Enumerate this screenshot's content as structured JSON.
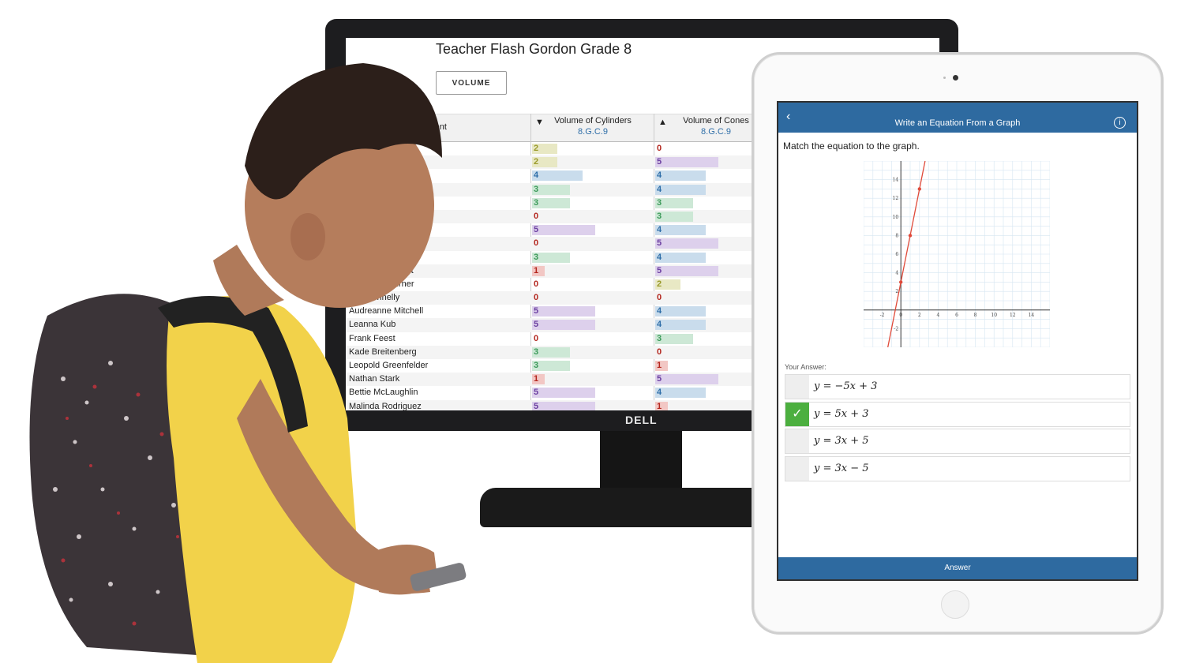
{
  "monitor": {
    "brand": "DELL",
    "title": "Teacher Flash Gordon Grade 8",
    "tab_button": "VOLUME",
    "student_header": "Student",
    "columns": [
      {
        "title": "Volume of Cylinders",
        "code": "8.G.C.9",
        "sort_arrow": "▼"
      },
      {
        "title": "Volume of Cones",
        "code": "8.G.C.9",
        "sort_arrow": "▲"
      }
    ],
    "rows": [
      {
        "name": "",
        "cyl": 2,
        "cone": 0
      },
      {
        "name": "",
        "cyl": 2,
        "cone": 5
      },
      {
        "name": "",
        "cyl": 4,
        "cone": 4
      },
      {
        "name": "",
        "cyl": 3,
        "cone": 4
      },
      {
        "name": "",
        "cyl": 3,
        "cone": 3
      },
      {
        "name": "",
        "cyl": 0,
        "cone": 3
      },
      {
        "name": "ros",
        "cyl": 5,
        "cone": 4
      },
      {
        "name": "ann",
        "cyl": 0,
        "cone": 5
      },
      {
        "name": "chuppe",
        "cyl": 3,
        "cone": 4
      },
      {
        "name": "Alysson Wuckert",
        "cyl": 1,
        "cone": 5
      },
      {
        "name": "Marcelina Turner",
        "cyl": 0,
        "cone": 2
      },
      {
        "name": "Zita Donnelly",
        "cyl": 0,
        "cone": 0
      },
      {
        "name": "Audreanne Mitchell",
        "cyl": 5,
        "cone": 4
      },
      {
        "name": "Leanna Kub",
        "cyl": 5,
        "cone": 4
      },
      {
        "name": "Frank Feest",
        "cyl": 0,
        "cone": 3
      },
      {
        "name": "Kade Breitenberg",
        "cyl": 3,
        "cone": 0
      },
      {
        "name": "Leopold Greenfelder",
        "cyl": 3,
        "cone": 1
      },
      {
        "name": "Nathan Stark",
        "cyl": 1,
        "cone": 5
      },
      {
        "name": "Bettie McLaughlin",
        "cyl": 5,
        "cone": 4
      },
      {
        "name": "Malinda Rodriguez",
        "cyl": 5,
        "cone": 1
      }
    ],
    "score_colors": {
      "0": {
        "text": "#b3261e",
        "bar": "transparent"
      },
      "1": {
        "text": "#b3261e",
        "bar": "#f2c7c4"
      },
      "2": {
        "text": "#9a9a2a",
        "bar": "#e8e8c4"
      },
      "3": {
        "text": "#3d9a5a",
        "bar": "#cde8d6"
      },
      "4": {
        "text": "#2f6ea8",
        "bar": "#c9dcec"
      },
      "5": {
        "text": "#6b3fa0",
        "bar": "#ddd0ec"
      }
    }
  },
  "tablet": {
    "nav_back": "‹",
    "nav_title": "Write an Equation From a Graph",
    "nav_info": "i",
    "prompt": "Match the equation to the graph.",
    "graph": {
      "x_ticks": [
        "-2",
        "0",
        "2",
        "4",
        "6",
        "8",
        "10",
        "12",
        "14"
      ],
      "y_ticks": [
        "14",
        "12",
        "10",
        "8",
        "6",
        "4",
        "2",
        "-2"
      ],
      "line_color": "#e04a3a"
    },
    "your_answer_label": "Your Answer:",
    "choices": [
      {
        "label": "y = −5x + 3",
        "selected": false
      },
      {
        "label": "y = 5x + 3",
        "selected": true
      },
      {
        "label": "y = 3x + 5",
        "selected": false
      },
      {
        "label": "y = 3x − 5",
        "selected": false
      }
    ],
    "check_mark": "✓",
    "submit": "Answer"
  }
}
